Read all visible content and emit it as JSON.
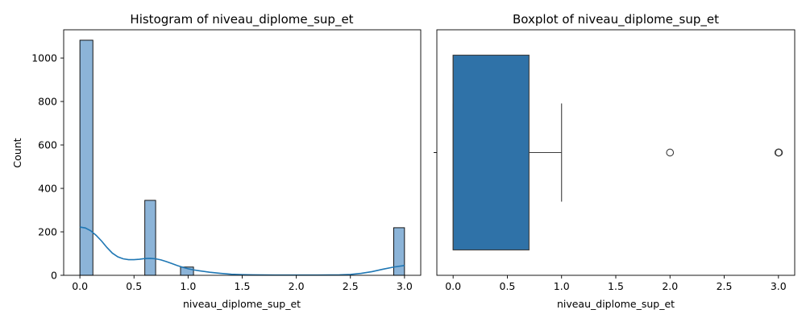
{
  "chart_data": [
    {
      "type": "bar",
      "subtype": "histogram-with-kde",
      "title": "Histogram of niveau_diplome_sup_et",
      "xlabel": "niveau_diplome_sup_et",
      "ylabel": "Count",
      "xlim": [
        -0.15,
        3.15
      ],
      "ylim": [
        0,
        1130
      ],
      "xticks": [
        0.0,
        0.5,
        1.0,
        1.5,
        2.0,
        2.5,
        3.0
      ],
      "xtick_labels": [
        "0.0",
        "0.5",
        "1.0",
        "1.5",
        "2.0",
        "2.5",
        "3.0"
      ],
      "yticks": [
        0,
        200,
        400,
        600,
        800,
        1000
      ],
      "ytick_labels": [
        "0",
        "200",
        "400",
        "600",
        "800",
        "1000"
      ],
      "bar_color": "#8cb4d8",
      "kde_color": "#1f77b4",
      "bars": [
        {
          "x0": 0.0,
          "x1": 0.12,
          "count": 1082
        },
        {
          "x0": 0.6,
          "x1": 0.7,
          "count": 345
        },
        {
          "x0": 0.93,
          "x1": 1.05,
          "count": 38
        },
        {
          "x0": 2.9,
          "x1": 3.0,
          "count": 219
        }
      ],
      "kde": {
        "x": [
          0.0,
          0.05,
          0.1,
          0.15,
          0.2,
          0.25,
          0.3,
          0.35,
          0.4,
          0.45,
          0.5,
          0.55,
          0.6,
          0.65,
          0.7,
          0.75,
          0.8,
          0.85,
          0.9,
          0.95,
          1.0,
          1.05,
          1.1,
          1.2,
          1.3,
          1.4,
          1.5,
          1.6,
          1.8,
          2.0,
          2.2,
          2.4,
          2.5,
          2.6,
          2.7,
          2.8,
          2.9,
          3.0
        ],
        "y": [
          222,
          218,
          205,
          184,
          158,
          128,
          102,
          85,
          76,
          72,
          72,
          74,
          77,
          78,
          76,
          71,
          63,
          54,
          45,
          37,
          30,
          25,
          21,
          14,
          9,
          5,
          3,
          2,
          1,
          1,
          1,
          2,
          4,
          9,
          17,
          28,
          38,
          45
        ]
      }
    },
    {
      "type": "box",
      "title": "Boxplot of niveau_diplome_sup_et",
      "xlabel": "niveau_diplome_sup_et",
      "xlim": [
        -0.15,
        3.15
      ],
      "xticks": [
        0.0,
        0.5,
        1.0,
        1.5,
        2.0,
        2.5,
        3.0
      ],
      "xtick_labels": [
        "0.0",
        "0.5",
        "1.0",
        "1.5",
        "2.0",
        "2.5",
        "3.0"
      ],
      "box_color": "#2f72a8",
      "min": 0.0,
      "q1": 0.0,
      "median": 0.0,
      "q3": 0.7,
      "max": 1.0,
      "outliers": [
        2.0,
        3.0,
        3.0,
        3.0
      ]
    }
  ]
}
